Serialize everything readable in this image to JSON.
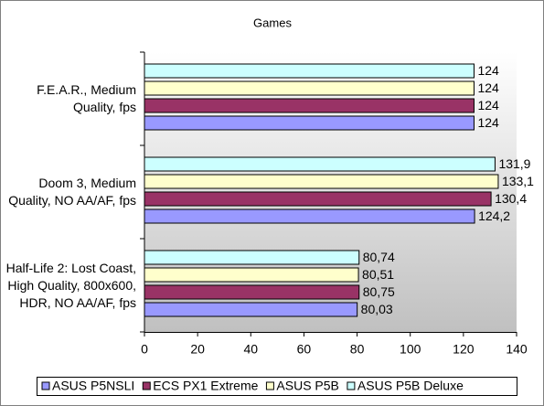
{
  "chart_data": {
    "type": "bar",
    "orientation": "horizontal",
    "title": "Games",
    "categories": [
      "F.E.A.R., Medium Quality, fps",
      "Doom 3, Medium Quality, NO AA/AF, fps",
      "Half-Life 2: Lost Coast, High Quality, 800x600, HDR, NO AA/AF, fps"
    ],
    "series": [
      {
        "name": "ASUS P5NSLI",
        "color": "#9999ff",
        "values": [
          124,
          124.2,
          80.03
        ],
        "value_labels": [
          "124",
          "124,2",
          "80,03"
        ]
      },
      {
        "name": "ECS PX1 Extreme",
        "color": "#993366",
        "values": [
          124,
          130.4,
          80.75
        ],
        "value_labels": [
          "124",
          "130,4",
          "80,75"
        ]
      },
      {
        "name": "ASUS P5B",
        "color": "#ffffcc",
        "values": [
          124,
          133.1,
          80.51
        ],
        "value_labels": [
          "124",
          "133,1",
          "80,51"
        ]
      },
      {
        "name": "ASUS P5B Deluxe",
        "color": "#ccffff",
        "values": [
          124,
          131.9,
          80.74
        ],
        "value_labels": [
          "124",
          "131,9",
          "80,74"
        ]
      }
    ],
    "xlim": [
      0,
      140
    ],
    "xticks": [
      0,
      20,
      40,
      60,
      80,
      100,
      120,
      140
    ],
    "legend": "bottom"
  }
}
